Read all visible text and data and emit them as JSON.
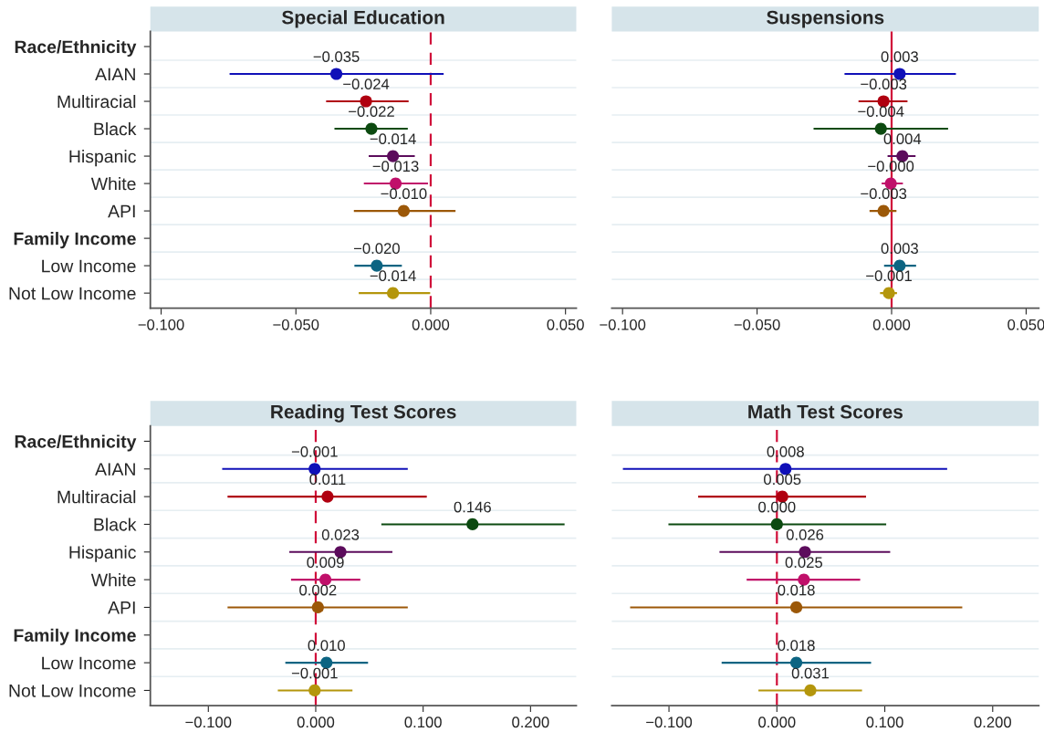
{
  "chart_data": [
    {
      "type": "scatter",
      "orientation": "horizontal",
      "title": "Special Education",
      "marker": "circle",
      "grid": "y",
      "categories": [
        "Race/Ethnicity",
        "AIAN",
        "Multiracial",
        "Black",
        "Hispanic",
        "White",
        "API",
        "Family Income",
        "Low Income",
        "Not Low Income"
      ],
      "values": [
        null,
        -0.035,
        -0.024,
        -0.022,
        -0.014,
        -0.013,
        -0.01,
        null,
        -0.02,
        -0.014
      ],
      "errors": [
        null,
        [
          -0.0746,
          0.0048
        ],
        [
          -0.0388,
          -0.0082
        ],
        [
          -0.0357,
          -0.0085
        ],
        [
          -0.023,
          -0.0059
        ],
        [
          -0.0248,
          -0.001
        ],
        [
          -0.0285,
          0.0092
        ],
        null,
        [
          -0.0283,
          -0.0107
        ],
        [
          -0.0267,
          -0.0002
        ]
      ],
      "colors": [
        null,
        "#1010b8",
        "#b00010",
        "#0c4a10",
        "#5c0c5c",
        "#c0106a",
        "#9c5808",
        null,
        "#0c6482",
        "#b4960c"
      ],
      "value_labels": [
        null,
        "−0.035",
        "−0.024",
        "−0.022",
        "−0.014",
        "−0.013",
        "−0.010",
        null,
        "−0.020",
        "−0.014"
      ],
      "xlim": [
        -0.104,
        0.054
      ],
      "xticks": [
        {
          "value": -0.1,
          "label": "−0.100"
        },
        {
          "value": -0.05,
          "label": "−0.050"
        },
        {
          "value": 0,
          "label": "0.000"
        },
        {
          "value": 0.05,
          "label": "0.050"
        }
      ],
      "ref_lines": [
        {
          "axis": "x",
          "value": 0,
          "color": "#d0103a",
          "line_style": "dashed"
        }
      ]
    },
    {
      "type": "scatter",
      "orientation": "horizontal",
      "title": "Suspensions",
      "marker": "circle",
      "grid": "y",
      "tick_labels": "x",
      "categories": [
        null,
        null,
        null,
        null,
        null,
        null,
        null,
        null,
        null,
        null
      ],
      "values": [
        null,
        0.003,
        -0.003,
        -0.004,
        0.004,
        -0.0003,
        -0.003,
        null,
        0.003,
        -0.001
      ],
      "errors": [
        null,
        [
          -0.0175,
          0.0239
        ],
        [
          -0.0123,
          0.0059
        ],
        [
          -0.029,
          0.021
        ],
        [
          -0.0015,
          0.0089
        ],
        [
          -0.0037,
          0.0042
        ],
        [
          -0.0082,
          0.0018
        ],
        null,
        [
          -0.0028,
          0.0091
        ],
        [
          -0.0043,
          0.002
        ]
      ],
      "colors": [
        null,
        "#1010b8",
        "#b00010",
        "#0c4a10",
        "#5c0c5c",
        "#c0106a",
        "#9c5808",
        null,
        "#0c6482",
        "#b4960c"
      ],
      "value_labels": [
        null,
        "0.003",
        "−0.003",
        "−0.004",
        "0.004",
        "−0.000",
        "−0.003",
        null,
        "0.003",
        "−0.001"
      ],
      "xlim": [
        -0.104,
        0.0547
      ],
      "xticks": [
        {
          "value": -0.1,
          "label": "−0.100"
        },
        {
          "value": -0.05,
          "label": "−0.050"
        },
        {
          "value": 0,
          "label": "0.000"
        },
        {
          "value": 0.05,
          "label": "0.050"
        }
      ],
      "ref_lines": [
        {
          "axis": "x",
          "value": 0,
          "color": "#d0103a",
          "line_style": "solid"
        }
      ]
    },
    {
      "type": "scatter",
      "orientation": "horizontal",
      "title": "Reading Test Scores",
      "marker": "circle",
      "grid": "y",
      "categories": [
        "Race/Ethnicity",
        "AIAN",
        "Multiracial",
        "Black",
        "Hispanic",
        "White",
        "API",
        "Family Income",
        "Low Income",
        "Not Low Income"
      ],
      "values": [
        null,
        -0.001,
        0.011,
        0.146,
        0.023,
        0.009,
        0.002,
        null,
        0.01,
        -0.001
      ],
      "errors": [
        null,
        [
          -0.0871,
          0.0857
        ],
        [
          -0.0821,
          0.1034
        ],
        [
          0.0611,
          0.2317
        ],
        [
          -0.0246,
          0.0714
        ],
        [
          -0.023,
          0.0415
        ],
        [
          -0.0821,
          0.0857
        ],
        null,
        [
          -0.0283,
          0.0487
        ],
        [
          -0.0353,
          0.0342
        ]
      ],
      "colors": [
        null,
        "#1010b8",
        "#b00010",
        "#0c4a10",
        "#5c0c5c",
        "#c0106a",
        "#9c5808",
        null,
        "#0c6482",
        "#b4960c"
      ],
      "value_labels": [
        null,
        "−0.001",
        "0.011",
        "0.146",
        "0.023",
        "0.009",
        "0.002",
        null,
        "0.010",
        "−0.001"
      ],
      "xlim": [
        -0.154,
        0.2426
      ],
      "xticks": [
        {
          "value": -0.1,
          "label": "−0.100"
        },
        {
          "value": 0,
          "label": "0.000"
        },
        {
          "value": 0.1,
          "label": "0.100"
        },
        {
          "value": 0.2,
          "label": "0.200"
        }
      ],
      "ref_lines": [
        {
          "axis": "x",
          "value": 0,
          "color": "#d0103a",
          "line_style": "dashed"
        }
      ]
    },
    {
      "type": "scatter",
      "orientation": "horizontal",
      "title": "Math Test Scores",
      "marker": "circle",
      "grid": "y",
      "tick_labels": "x",
      "categories": [
        null,
        null,
        null,
        null,
        null,
        null,
        null,
        null,
        null,
        null
      ],
      "values": [
        null,
        0.008,
        0.005,
        0.0,
        0.026,
        0.025,
        0.018,
        null,
        0.018,
        0.031
      ],
      "errors": [
        null,
        [
          -0.1427,
          0.1578
        ],
        [
          -0.073,
          0.0826
        ],
        [
          -0.1005,
          0.1013
        ],
        [
          -0.0532,
          0.105
        ],
        [
          -0.028,
          0.0772
        ],
        [
          -0.136,
          0.1718
        ],
        null,
        [
          -0.0512,
          0.0873
        ],
        [
          -0.0171,
          0.0789
        ]
      ],
      "colors": [
        null,
        "#1010b8",
        "#b00010",
        "#0c4a10",
        "#5c0c5c",
        "#c0106a",
        "#9c5808",
        null,
        "#0c6482",
        "#b4960c"
      ],
      "value_labels": [
        null,
        "0.008",
        "0.005",
        "0.000",
        "0.026",
        "0.025",
        "0.018",
        null,
        "0.018",
        "0.031"
      ],
      "xlim": [
        -0.153,
        0.2427
      ],
      "xticks": [
        {
          "value": -0.1,
          "label": "−0.100"
        },
        {
          "value": 0,
          "label": "0.000"
        },
        {
          "value": 0.1,
          "label": "0.100"
        },
        {
          "value": 0.2,
          "label": "0.200"
        }
      ],
      "ref_lines": [
        {
          "axis": "x",
          "value": 0,
          "color": "#d0103a",
          "line_style": "dashed"
        }
      ]
    }
  ]
}
